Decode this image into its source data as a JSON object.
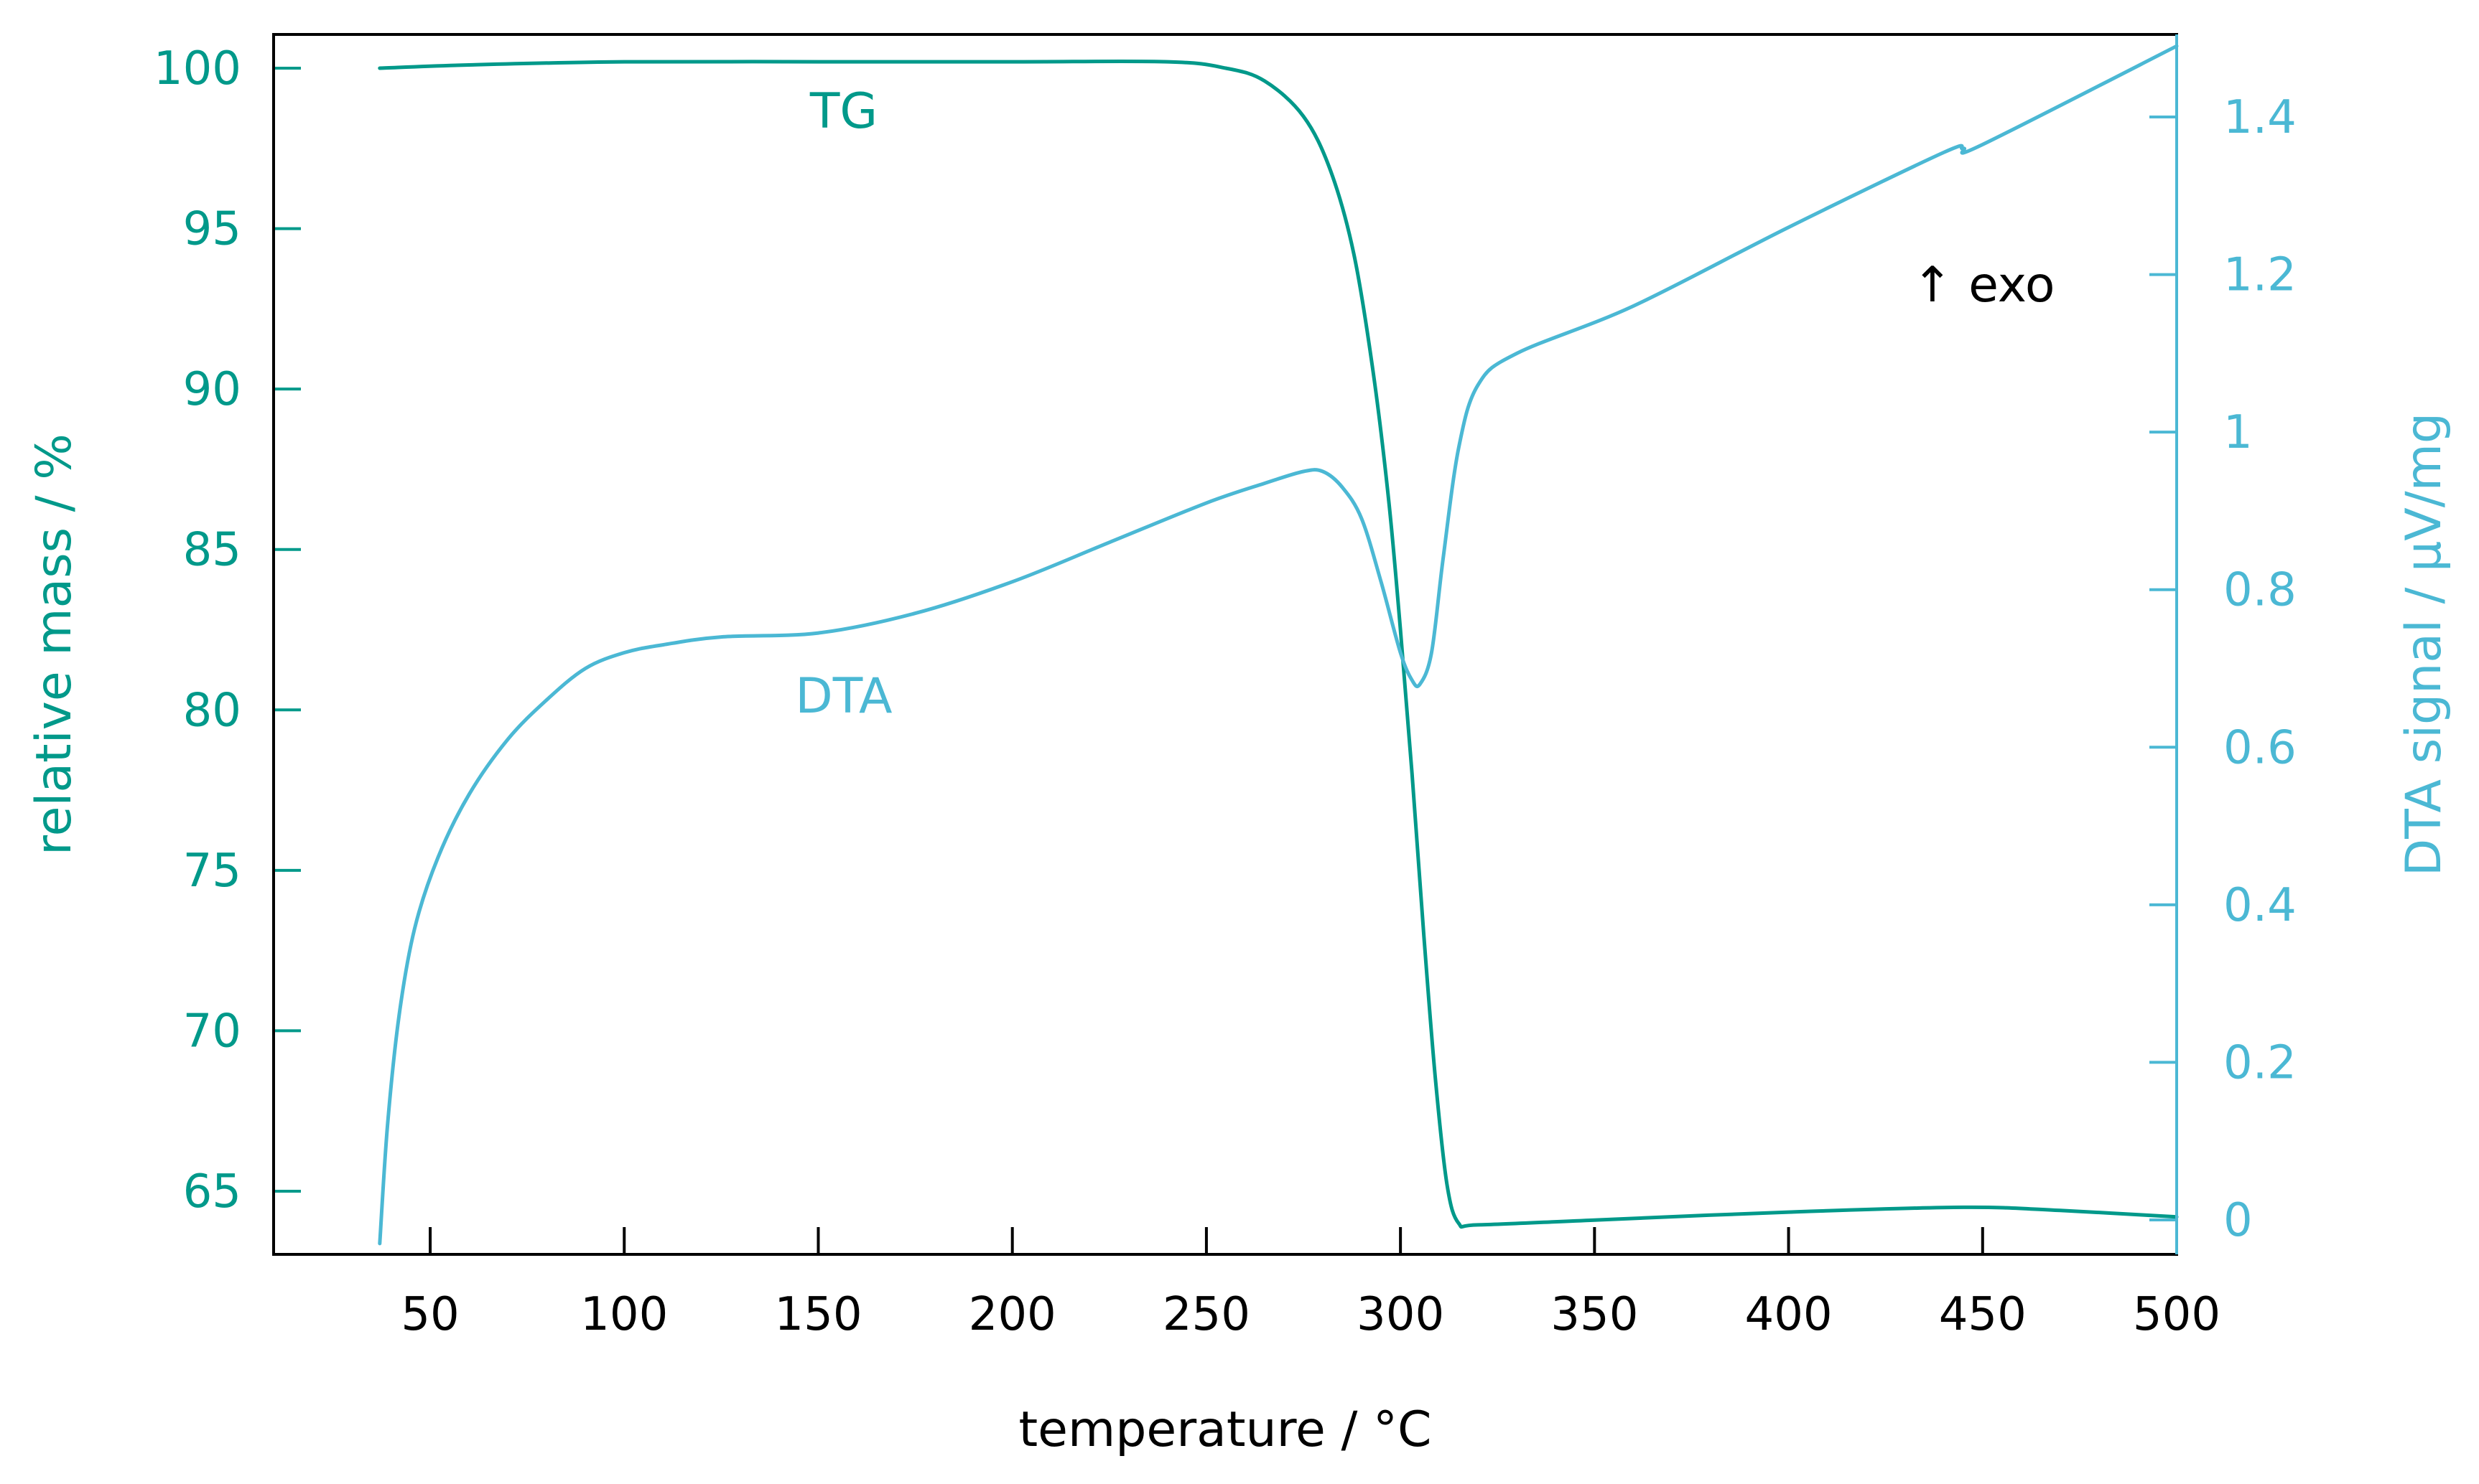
{
  "chart_data": {
    "type": "line",
    "xlabel": "temperature / °C",
    "ylabel_left": "relative mass / %",
    "ylabel_right": "DTA signal / μV/mg",
    "xlim": [
      20,
      500
    ],
    "ylim_left": [
      63,
      101
    ],
    "ylim_right": [
      -0.05,
      1.5
    ],
    "x_ticks": [
      "50",
      "100",
      "150",
      "200",
      "250",
      "300",
      "350",
      "400",
      "450",
      "500"
    ],
    "y_left_ticks": [
      "65",
      "70",
      "75",
      "80",
      "85",
      "90",
      "95",
      "100"
    ],
    "y_right_ticks": [
      "0",
      "0.2",
      "0.4",
      "0.6",
      "0.8",
      "1",
      "1.2",
      "1.4"
    ],
    "annotation": "↑ exo",
    "colors": {
      "tg": "#00998a",
      "dta": "#4bb8d4",
      "frame": "#000000",
      "right_axis": "#4bb8d4"
    },
    "series": [
      {
        "name": "TG",
        "axis": "left",
        "x": [
          37,
          60,
          100,
          150,
          200,
          240,
          255,
          265,
          275,
          282,
          288,
          293,
          297,
          300,
          303,
          306,
          309,
          312,
          315,
          320,
          350,
          400,
          445,
          470,
          500
        ],
        "y": [
          100.0,
          100.1,
          100.2,
          100.2,
          100.2,
          100.2,
          100.0,
          99.6,
          98.5,
          96.8,
          94.2,
          90.5,
          86.5,
          82.5,
          78.0,
          73.0,
          68.5,
          65.2,
          64.0,
          63.95,
          64.1,
          64.35,
          64.5,
          64.4,
          64.2
        ]
      },
      {
        "name": "DTA",
        "axis": "right",
        "x": [
          37,
          39,
          42,
          46,
          52,
          60,
          70,
          80,
          90,
          100,
          110,
          125,
          150,
          175,
          200,
          225,
          250,
          265,
          275,
          280,
          285,
          290,
          295,
          300,
          303,
          305,
          308,
          311,
          315,
          320,
          330,
          360,
          400,
          440,
          445,
          450,
          500
        ],
        "y": [
          -0.03,
          0.12,
          0.26,
          0.37,
          0.46,
          0.54,
          0.61,
          0.66,
          0.7,
          0.72,
          0.73,
          0.74,
          0.745,
          0.77,
          0.81,
          0.86,
          0.91,
          0.935,
          0.95,
          0.95,
          0.93,
          0.89,
          0.81,
          0.72,
          0.685,
          0.68,
          0.72,
          0.84,
          0.98,
          1.06,
          1.1,
          1.16,
          1.26,
          1.355,
          1.36,
          1.365,
          1.49
        ]
      }
    ],
    "labels": {
      "tg": "TG",
      "dta": "DTA"
    }
  }
}
